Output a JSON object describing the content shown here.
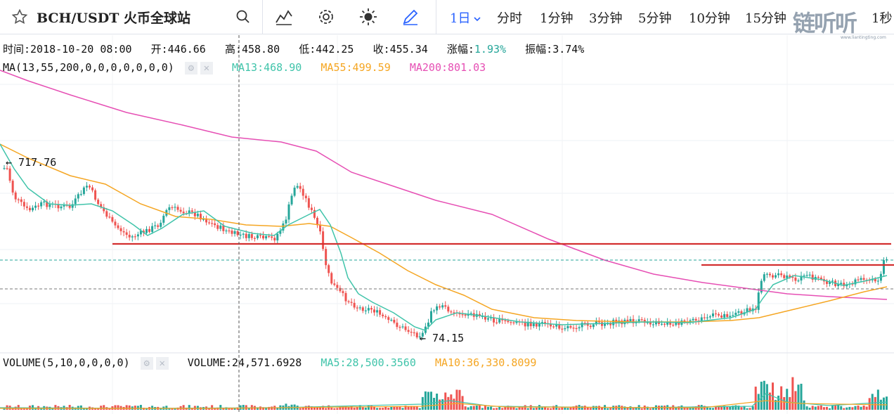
{
  "toolbar": {
    "symbol": "BCH/USDT 火币全球站",
    "intervals": [
      "1日",
      "分时",
      "1分钟",
      "3分钟",
      "5分钟",
      "10分钟",
      "15分钟",
      "1秒"
    ],
    "active_interval": "1日",
    "icons": [
      "star-icon",
      "search-icon",
      "indicators-icon",
      "settings-icon",
      "theme-icon",
      "draw-icon",
      "chevron-down-icon"
    ]
  },
  "watermark": {
    "text": "链听听",
    "sub": "www.liantingting.com"
  },
  "ohlc": {
    "time_label": "时间:",
    "time": "2018-10-20 08:00",
    "open_label": "开:",
    "open": "446.66",
    "high_label": "高:",
    "high": "458.80",
    "low_label": "低:",
    "low": "442.25",
    "close_label": "收:",
    "close": "455.34",
    "change_label": "涨幅:",
    "change": "1.93%",
    "amplitude_label": "振幅:",
    "amplitude": "3.74%"
  },
  "ma_legend": {
    "title": "MA(13,55,200,0,0,0,0,0,0,0)",
    "ma13": "MA13:468.90",
    "ma55": "MA55:499.59",
    "ma200": "MA200:801.03"
  },
  "volume_legend": {
    "title": "VOLUME(5,10,0,0,0,0)",
    "volume": "VOLUME:24,571.6928",
    "ma5": "MA5:28,500.3560",
    "ma10": "MA10:36,330.8099"
  },
  "price_marks": {
    "high": "717.76",
    "low": "74.15"
  },
  "colors": {
    "up": "#26a69a",
    "down": "#ef5350",
    "ma13": "#40c4aa",
    "ma55": "#f5a623",
    "ma200": "#e64fb4",
    "support": "#d32f2f",
    "accent": "#2962ff"
  },
  "chart_data": {
    "type": "candlestick",
    "series": [
      {
        "name": "MA13",
        "value": 468.9
      },
      {
        "name": "MA55",
        "value": 499.59
      },
      {
        "name": "MA200",
        "value": 801.03
      }
    ],
    "annotations": [
      "717.76",
      "74.15"
    ]
  }
}
